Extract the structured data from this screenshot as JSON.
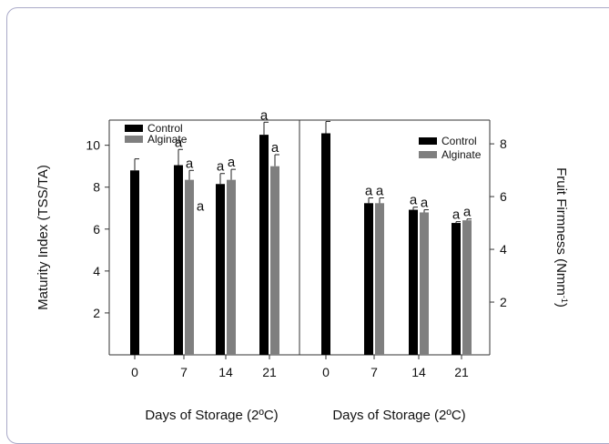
{
  "chart_data": [
    {
      "type": "bar",
      "ylabel": "Maturity Index (TSS/TA)",
      "xlabel": "Days of Storage (2ºC)",
      "categories": [
        "0",
        "7",
        "14",
        "21"
      ],
      "yticks": [
        "2",
        "4",
        "6",
        "8",
        "10"
      ],
      "ylim": [
        0,
        11.2
      ],
      "legend": {
        "position": "top-left"
      },
      "series": [
        {
          "name": "Control",
          "color": "#000000",
          "values": [
            8.8,
            9.05,
            8.15,
            10.5
          ],
          "errors": [
            0.55,
            0.75,
            0.5,
            0.6
          ],
          "labels": [
            "",
            "a",
            "a",
            "a"
          ]
        },
        {
          "name": "Alginate",
          "color": "#7f7f7f",
          "values": [
            null,
            8.35,
            8.35,
            9.0
          ],
          "errors": [
            null,
            0.45,
            0.5,
            0.55
          ],
          "labels": [
            "",
            "a",
            "a",
            "a"
          ]
        }
      ],
      "annotations": [
        {
          "category": "7",
          "text": "a",
          "value": 7.1
        }
      ]
    },
    {
      "type": "bar",
      "ylabel": "Fruit Firmness (Nmm-1)",
      "xlabel": "Days of Storage (2ºC)",
      "categories": [
        "0",
        "7",
        "14",
        "21"
      ],
      "yticks": [
        "2",
        "4",
        "6",
        "8"
      ],
      "ylim": [
        0,
        8.9
      ],
      "legend": {
        "position": "top-right"
      },
      "series": [
        {
          "name": "Control",
          "color": "#000000",
          "values": [
            8.4,
            5.75,
            5.5,
            5.0
          ],
          "errors": [
            0.45,
            0.2,
            0.1,
            0.05
          ],
          "labels": [
            "",
            "a",
            "a",
            "a"
          ]
        },
        {
          "name": "Alginate",
          "color": "#7f7f7f",
          "values": [
            null,
            5.75,
            5.4,
            5.1
          ],
          "errors": [
            null,
            0.2,
            0.1,
            0.05
          ],
          "labels": [
            "",
            "a",
            "a",
            "a"
          ]
        }
      ]
    }
  ]
}
